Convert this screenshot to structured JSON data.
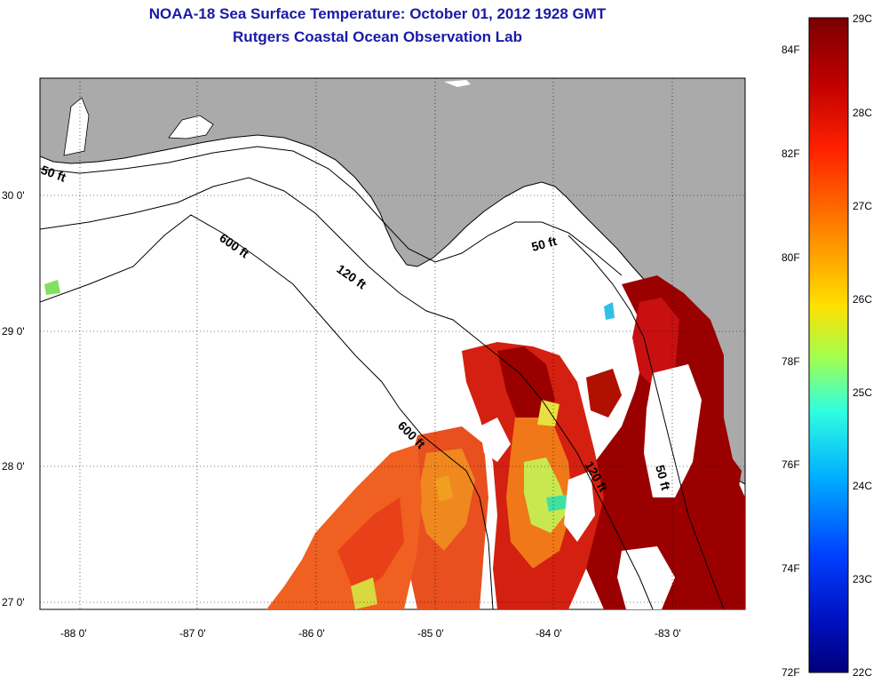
{
  "title": "NOAA-18 Sea Surface Temperature:  October 01, 2012 1928 GMT",
  "subtitle": "Rutgers Coastal Ocean Observation Lab",
  "map": {
    "lon_ticks": [
      "-88 0'",
      "-87 0'",
      "-86 0'",
      "-85 0'",
      "-84 0'",
      "-83 0'"
    ],
    "lat_ticks": [
      "30 0'",
      "29 0'",
      "28 0'",
      "27 0'"
    ],
    "land_color": "#aaaaaa",
    "no_data_color": "#ffffff",
    "contours": [
      {
        "label": "50 ft"
      },
      {
        "label": "600 ft"
      },
      {
        "label": "120 ft"
      },
      {
        "label": "50 ft"
      },
      {
        "label": "600 ft"
      },
      {
        "label": "120 ft"
      },
      {
        "label": "50 ft"
      }
    ]
  },
  "colorbar": {
    "c_labels": [
      "29C",
      "28C",
      "27C",
      "26C",
      "25C",
      "24C",
      "23C",
      "22C"
    ],
    "f_labels": [
      "84F",
      "82F",
      "80F",
      "78F",
      "76F",
      "74F",
      "72F"
    ],
    "colors": [
      "#7a0000",
      "#c40000",
      "#ff2a00",
      "#ff8000",
      "#ffd800",
      "#c8ff30",
      "#40ffd0",
      "#00c0ff",
      "#0060ff",
      "#0010c0",
      "#00007a"
    ]
  }
}
